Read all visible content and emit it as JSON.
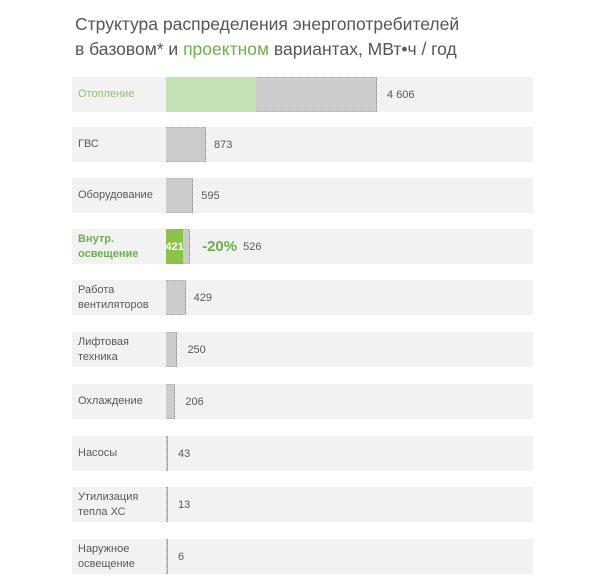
{
  "chart_data": {
    "type": "bar",
    "orientation": "horizontal",
    "title_parts": [
      "Структура  распределения энергопотребителей",
      "в базовом* и ",
      "проектном",
      " вариантах, МВт•ч / год"
    ],
    "categories": [
      "Отопление",
      "ГВС",
      "Оборудование",
      "Внутр. освещение",
      "Работа вентиляторов",
      "Лифтовая техника",
      "Охлаждение",
      "Насосы",
      "Утилизация тепла ХС",
      "Наружное освещение"
    ],
    "series": [
      {
        "values": [
          4606,
          873,
          595,
          526,
          429,
          250,
          206,
          43,
          13,
          6
        ],
        "color": "#cdcccc"
      },
      {
        "values": [
          1960,
          null,
          null,
          421,
          null,
          null,
          null,
          null,
          null,
          null
        ],
        "color": "#8bc34a"
      }
    ],
    "value_labels": [
      "4 606",
      "873",
      "595",
      "526",
      "429",
      "250",
      "206",
      "43",
      "13",
      "6"
    ],
    "design_labels": {
      "3": "421"
    },
    "annotations": {
      "3": "-20%"
    },
    "highlight": [
      0,
      3
    ],
    "colors": {
      "base": "#cdcccc",
      "design_light": "#c5e0b3",
      "design": "#8bc34a",
      "accent_text": "#6ab04c",
      "band": "#f2f2f2"
    },
    "xlim": [
      0,
      10000
    ],
    "grid": false,
    "legend": "none"
  }
}
